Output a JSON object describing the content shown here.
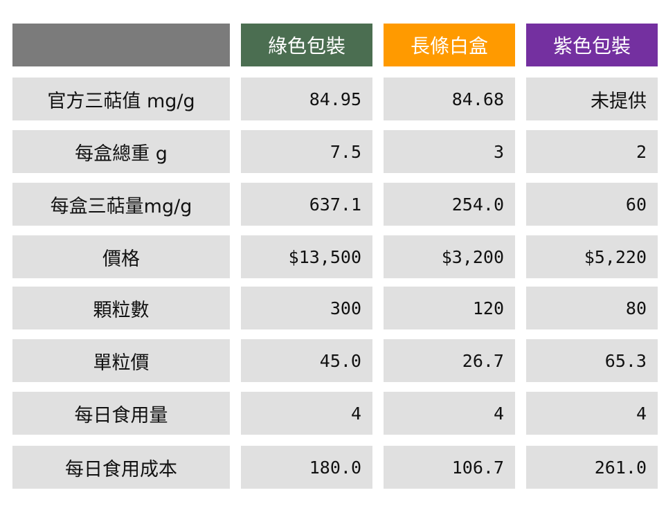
{
  "header": {
    "corner": "",
    "columns": [
      {
        "label": "綠色包裝",
        "color": "#4b6e51"
      },
      {
        "label": "長條白盒",
        "color": "#ff9a00"
      },
      {
        "label": "紫色包裝",
        "color": "#7430a0"
      }
    ],
    "corner_color": "#7b7b7b"
  },
  "rows": [
    {
      "label": "官方三萜值 mg/g",
      "values": [
        "84.95",
        "84.68",
        "未提供"
      ]
    },
    {
      "label": "每盒總重 g",
      "values": [
        "7.5",
        "3",
        "2"
      ]
    },
    {
      "label": "每盒三萜量mg/g",
      "values": [
        "637.1",
        "254.0",
        "60"
      ]
    },
    {
      "label": "價格",
      "values": [
        "$13,500",
        "$3,200",
        "$5,220"
      ]
    },
    {
      "label": "顆粒數",
      "values": [
        "300",
        "120",
        "80"
      ]
    },
    {
      "label": "單粒價",
      "values": [
        "45.0",
        "26.7",
        "65.3"
      ]
    },
    {
      "label": "每日食用量",
      "values": [
        "4",
        "4",
        "4"
      ]
    },
    {
      "label": "每日食用成本",
      "values": [
        "180.0",
        "106.7",
        "261.0"
      ]
    }
  ]
}
